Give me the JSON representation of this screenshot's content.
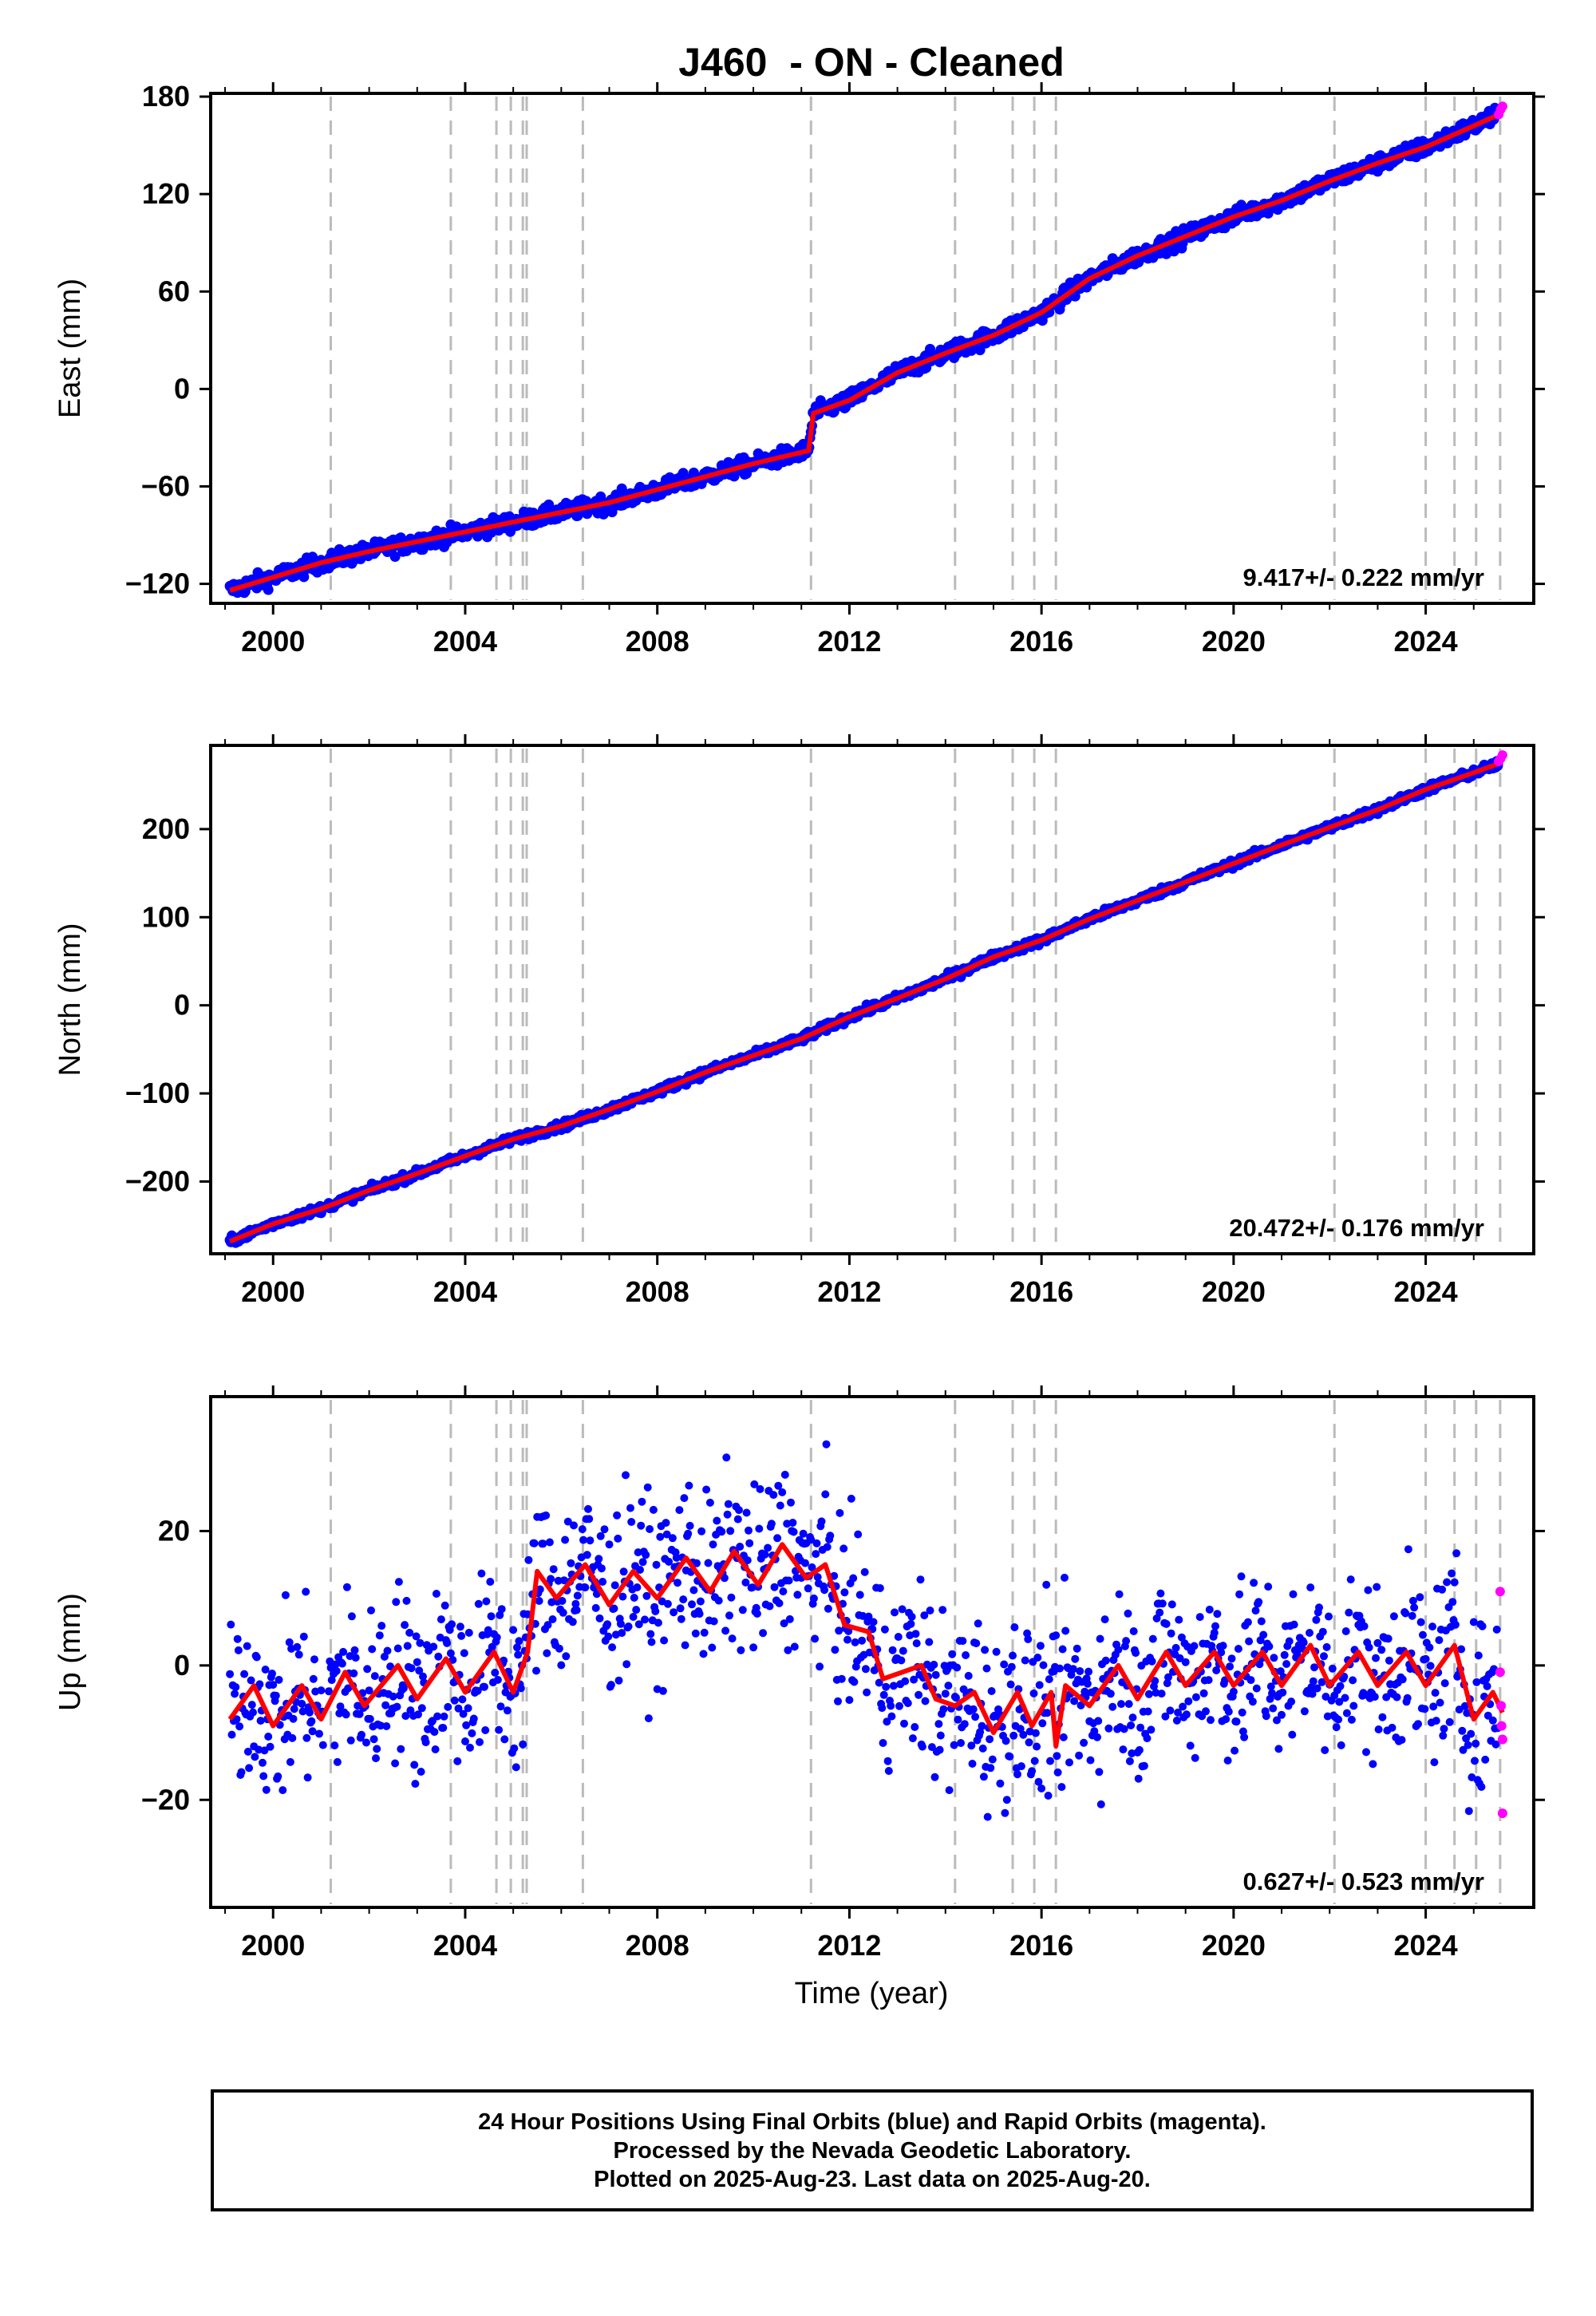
{
  "title": "J460  - ON - Cleaned",
  "x_axis": {
    "label": "Time (year)",
    "ticks": [
      2000,
      2004,
      2008,
      2012,
      2016,
      2020,
      2024
    ],
    "range": [
      1998.7,
      2026.25
    ]
  },
  "colors": {
    "final_orbits": "#0000ff",
    "rapid_orbits": "#ff00ff",
    "model": "#ff0000",
    "event_lines": "#bbbbbb",
    "axes": "#000000"
  },
  "event_lines_years": [
    2001.2,
    2003.7,
    2004.65,
    2004.95,
    2005.2,
    2005.28,
    2006.45,
    2011.2,
    2014.2,
    2015.4,
    2015.85,
    2016.3,
    2022.1,
    2024.0,
    2024.6,
    2025.05,
    2025.55
  ],
  "footer": {
    "line1": "24 Hour Positions Using Final Orbits (blue) and Rapid Orbits (magenta).",
    "line2": "Processed by the Nevada Geodetic Laboratory.",
    "line3": "Plotted on 2025-Aug-23. Last data on 2025-Aug-20."
  },
  "chart_data": [
    {
      "type": "scatter",
      "name": "east",
      "ylabel": "East (mm)",
      "ylim": [
        -132,
        182
      ],
      "yticks": [
        -120,
        -60,
        0,
        60,
        120,
        180
      ],
      "rate_label": "9.417+/- 0.222 mm/yr",
      "model_points": [
        [
          1999.1,
          -124
        ],
        [
          2000.0,
          -116
        ],
        [
          2001.0,
          -107
        ],
        [
          2002.0,
          -100
        ],
        [
          2003.0,
          -94
        ],
        [
          2004.0,
          -88
        ],
        [
          2005.0,
          -82
        ],
        [
          2006.0,
          -76
        ],
        [
          2007.0,
          -70
        ],
        [
          2008.0,
          -62
        ],
        [
          2009.0,
          -54
        ],
        [
          2010.0,
          -46
        ],
        [
          2011.15,
          -38
        ],
        [
          2011.25,
          -15
        ],
        [
          2012.0,
          -7
        ],
        [
          2013.0,
          10
        ],
        [
          2014.0,
          22
        ],
        [
          2015.0,
          33
        ],
        [
          2016.0,
          47
        ],
        [
          2017.0,
          68
        ],
        [
          2018.0,
          82
        ],
        [
          2019.0,
          94
        ],
        [
          2020.0,
          106
        ],
        [
          2021.0,
          116
        ],
        [
          2022.0,
          128
        ],
        [
          2023.0,
          139
        ],
        [
          2024.0,
          149
        ],
        [
          2025.0,
          162
        ],
        [
          2025.6,
          170
        ]
      ],
      "rapid_points": [
        [
          2025.52,
          169
        ],
        [
          2025.56,
          172
        ],
        [
          2025.6,
          174
        ]
      ]
    },
    {
      "type": "scatter",
      "name": "north",
      "ylabel": "North (mm)",
      "ylim": [
        -282,
        295
      ],
      "yticks": [
        -200,
        -100,
        0,
        100,
        200
      ],
      "rate_label": "20.472+/- 0.176 mm/yr",
      "model_points": [
        [
          1999.1,
          -268
        ],
        [
          2000.0,
          -248
        ],
        [
          2001.0,
          -231
        ],
        [
          2002.0,
          -210
        ],
        [
          2003.0,
          -191
        ],
        [
          2004.0,
          -171
        ],
        [
          2005.0,
          -152
        ],
        [
          2006.0,
          -137
        ],
        [
          2007.0,
          -118
        ],
        [
          2008.0,
          -98
        ],
        [
          2009.0,
          -76
        ],
        [
          2010.0,
          -57
        ],
        [
          2011.0,
          -38
        ],
        [
          2012.0,
          -13
        ],
        [
          2013.0,
          8
        ],
        [
          2014.0,
          30
        ],
        [
          2015.0,
          55
        ],
        [
          2016.0,
          74
        ],
        [
          2017.0,
          98
        ],
        [
          2018.0,
          119
        ],
        [
          2019.0,
          140
        ],
        [
          2020.0,
          161
        ],
        [
          2021.0,
          182
        ],
        [
          2022.0,
          202
        ],
        [
          2023.0,
          222
        ],
        [
          2024.0,
          245
        ],
        [
          2025.0,
          264
        ],
        [
          2025.6,
          276
        ]
      ],
      "rapid_points": [
        [
          2025.52,
          277
        ],
        [
          2025.56,
          280
        ],
        [
          2025.6,
          284
        ]
      ]
    },
    {
      "type": "scatter",
      "name": "up",
      "ylabel": "Up (mm)",
      "ylim": [
        -36,
        40
      ],
      "yticks": [
        -20,
        0,
        20
      ],
      "rate_label": "0.627+/- 0.523 mm/yr",
      "model_points": [
        [
          1999.1,
          -8
        ],
        [
          1999.6,
          -3
        ],
        [
          2000.0,
          -9
        ],
        [
          2000.6,
          -3
        ],
        [
          2001.0,
          -8
        ],
        [
          2001.5,
          -1
        ],
        [
          2001.9,
          -6
        ],
        [
          2002.6,
          0
        ],
        [
          2003.0,
          -5
        ],
        [
          2003.6,
          1
        ],
        [
          2004.0,
          -4
        ],
        [
          2004.6,
          2
        ],
        [
          2005.0,
          -4
        ],
        [
          2005.3,
          2
        ],
        [
          2005.5,
          14
        ],
        [
          2005.9,
          10
        ],
        [
          2006.5,
          15
        ],
        [
          2007.0,
          9
        ],
        [
          2007.5,
          14
        ],
        [
          2008.0,
          10
        ],
        [
          2008.6,
          16
        ],
        [
          2009.1,
          11
        ],
        [
          2009.6,
          17
        ],
        [
          2010.1,
          12
        ],
        [
          2010.6,
          18
        ],
        [
          2011.1,
          13
        ],
        [
          2011.5,
          15
        ],
        [
          2011.9,
          6
        ],
        [
          2012.4,
          5
        ],
        [
          2012.7,
          -2
        ],
        [
          2013.1,
          -1
        ],
        [
          2013.5,
          0
        ],
        [
          2013.8,
          -5
        ],
        [
          2014.2,
          -6
        ],
        [
          2014.6,
          -4
        ],
        [
          2015.0,
          -10
        ],
        [
          2015.5,
          -4
        ],
        [
          2015.8,
          -9
        ],
        [
          2016.2,
          -4
        ],
        [
          2016.3,
          -12
        ],
        [
          2016.5,
          -3
        ],
        [
          2017.0,
          -6
        ],
        [
          2017.6,
          0
        ],
        [
          2018.0,
          -5
        ],
        [
          2018.6,
          2
        ],
        [
          2019.0,
          -3
        ],
        [
          2019.6,
          2
        ],
        [
          2020.0,
          -3
        ],
        [
          2020.6,
          2
        ],
        [
          2021.0,
          -3
        ],
        [
          2021.6,
          3
        ],
        [
          2022.0,
          -3
        ],
        [
          2022.6,
          2
        ],
        [
          2023.0,
          -3
        ],
        [
          2023.6,
          2
        ],
        [
          2024.0,
          -3
        ],
        [
          2024.6,
          3
        ],
        [
          2025.0,
          -8
        ],
        [
          2025.4,
          -4
        ],
        [
          2025.6,
          -7
        ]
      ],
      "rapid_points": [
        [
          2025.55,
          11
        ],
        [
          2025.55,
          -1
        ],
        [
          2025.57,
          -6
        ],
        [
          2025.58,
          -9
        ],
        [
          2025.6,
          -11
        ],
        [
          2025.6,
          -22
        ]
      ]
    }
  ]
}
